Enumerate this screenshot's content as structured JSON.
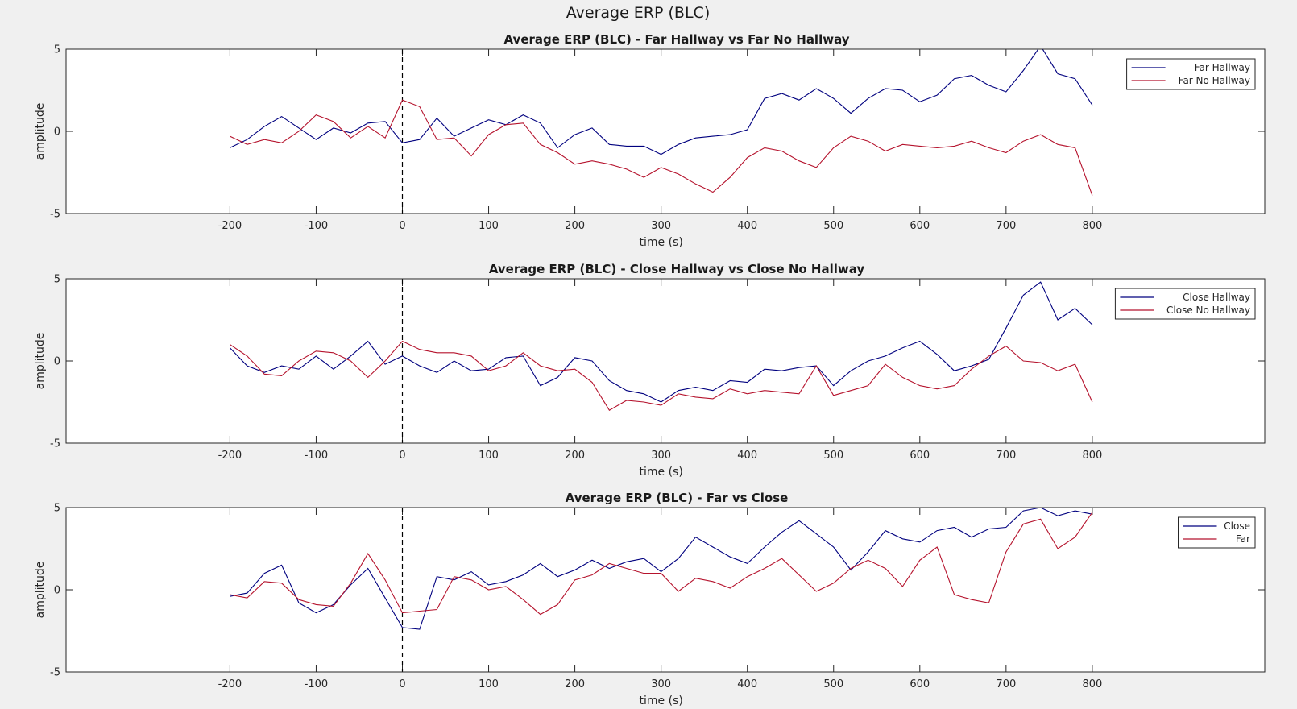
{
  "figure_title": "Average ERP (BLC)",
  "colors": {
    "series1": "#00007f",
    "series2": "#b5132d",
    "axes": "#262626",
    "plot_bg": "#ffffff",
    "figure_bg": "#f0f0f0"
  },
  "chart_data": [
    {
      "type": "line",
      "title": "Average ERP (BLC) - Far Hallway vs Far No Hallway",
      "xlabel": "time (s)",
      "ylabel": "amplitude",
      "xlim": [
        -390,
        1000
      ],
      "ylim": [
        -5,
        5
      ],
      "xticks": [
        "-200",
        "-100",
        "0",
        "100",
        "200",
        "300",
        "400",
        "500",
        "600",
        "700",
        "800"
      ],
      "yticks": [
        "-5",
        "0",
        "5"
      ],
      "vline_x": 0,
      "legend_position": "top-right",
      "grid": false,
      "series": [
        {
          "name": "Far Hallway",
          "color": "#00007f",
          "x": [
            -200,
            -180,
            -160,
            -140,
            -120,
            -100,
            -80,
            -60,
            -40,
            -20,
            0,
            20,
            40,
            60,
            80,
            100,
            120,
            140,
            160,
            180,
            200,
            220,
            240,
            260,
            280,
            300,
            320,
            340,
            360,
            380,
            400,
            420,
            440,
            460,
            480,
            500,
            520,
            540,
            560,
            580,
            600,
            620,
            640,
            660,
            680,
            700,
            720,
            740,
            760,
            780,
            800
          ],
          "y": [
            -1,
            -0.5,
            0.3,
            0.9,
            0.2,
            -0.5,
            0.2,
            -0.1,
            0.5,
            0.6,
            -0.7,
            -0.5,
            0.8,
            -0.3,
            0.2,
            0.7,
            0.4,
            1,
            0.5,
            -1,
            -0.2,
            0.2,
            -0.8,
            -0.9,
            -0.9,
            -1.4,
            -0.8,
            -0.4,
            -0.3,
            -0.2,
            0.1,
            2,
            2.3,
            1.9,
            2.6,
            2,
            1.1,
            2,
            2.6,
            2.5,
            1.8,
            2.2,
            3.2,
            3.4,
            2.8,
            2.4,
            3.7,
            5.2,
            3.5,
            3.2,
            1.6
          ]
        },
        {
          "name": "Far No Hallway",
          "color": "#b5132d",
          "x": [
            -200,
            -180,
            -160,
            -140,
            -120,
            -100,
            -80,
            -60,
            -40,
            -20,
            0,
            20,
            40,
            60,
            80,
            100,
            120,
            140,
            160,
            180,
            200,
            220,
            240,
            260,
            280,
            300,
            320,
            340,
            360,
            380,
            400,
            420,
            440,
            460,
            480,
            500,
            520,
            540,
            560,
            580,
            600,
            620,
            640,
            660,
            680,
            700,
            720,
            740,
            760,
            780,
            800
          ],
          "y": [
            -0.3,
            -0.8,
            -0.5,
            -0.7,
            0,
            1,
            0.6,
            -0.4,
            0.3,
            -0.4,
            1.9,
            1.5,
            -0.5,
            -0.4,
            -1.5,
            -0.2,
            0.4,
            0.5,
            -0.8,
            -1.3,
            -2,
            -1.8,
            -2,
            -2.3,
            -2.8,
            -2.2,
            -2.6,
            -3.2,
            -3.7,
            -2.8,
            -1.6,
            -1,
            -1.2,
            -1.8,
            -2.2,
            -1,
            -0.3,
            -0.6,
            -1.2,
            -0.8,
            -0.9,
            -1,
            -0.9,
            -0.6,
            -1,
            -1.3,
            -0.6,
            -0.2,
            -0.8,
            -1,
            -3.9
          ]
        }
      ]
    },
    {
      "type": "line",
      "title": "Average ERP (BLC) - Close Hallway vs Close No Hallway",
      "xlabel": "time (s)",
      "ylabel": "amplitude",
      "xlim": [
        -390,
        1000
      ],
      "ylim": [
        -5,
        5
      ],
      "xticks": [
        "-200",
        "-100",
        "0",
        "100",
        "200",
        "300",
        "400",
        "500",
        "600",
        "700",
        "800"
      ],
      "yticks": [
        "-5",
        "0",
        "5"
      ],
      "vline_x": 0,
      "legend_position": "top-right",
      "grid": false,
      "series": [
        {
          "name": "Close Hallway",
          "color": "#00007f",
          "x": [
            -200,
            -180,
            -160,
            -140,
            -120,
            -100,
            -80,
            -60,
            -40,
            -20,
            0,
            20,
            40,
            60,
            80,
            100,
            120,
            140,
            160,
            180,
            200,
            220,
            240,
            260,
            280,
            300,
            320,
            340,
            360,
            380,
            400,
            420,
            440,
            460,
            480,
            500,
            520,
            540,
            560,
            580,
            600,
            620,
            640,
            660,
            680,
            700,
            720,
            740,
            760,
            780,
            800
          ],
          "y": [
            0.8,
            -0.3,
            -0.7,
            -0.3,
            -0.5,
            0.3,
            -0.5,
            0.3,
            1.2,
            -0.2,
            0.3,
            -0.3,
            -0.7,
            0,
            -0.6,
            -0.5,
            0.2,
            0.3,
            -1.5,
            -1,
            0.2,
            0,
            -1.2,
            -1.8,
            -2,
            -2.5,
            -1.8,
            -1.6,
            -1.8,
            -1.2,
            -1.3,
            -0.5,
            -0.6,
            -0.4,
            -0.3,
            -1.5,
            -0.6,
            0,
            0.3,
            0.8,
            1.2,
            0.4,
            -0.6,
            -0.3,
            0.1,
            2,
            4,
            4.8,
            2.5,
            3.2,
            2.2
          ]
        },
        {
          "name": "Close No Hallway",
          "color": "#b5132d",
          "x": [
            -200,
            -180,
            -160,
            -140,
            -120,
            -100,
            -80,
            -60,
            -40,
            -20,
            0,
            20,
            40,
            60,
            80,
            100,
            120,
            140,
            160,
            180,
            200,
            220,
            240,
            260,
            280,
            300,
            320,
            340,
            360,
            380,
            400,
            420,
            440,
            460,
            480,
            500,
            520,
            540,
            560,
            580,
            600,
            620,
            640,
            660,
            680,
            700,
            720,
            740,
            760,
            780,
            800
          ],
          "y": [
            1,
            0.3,
            -0.8,
            -0.9,
            0,
            0.6,
            0.5,
            0,
            -1,
            0,
            1.2,
            0.7,
            0.5,
            0.5,
            0.3,
            -0.6,
            -0.3,
            0.5,
            -0.3,
            -0.6,
            -0.5,
            -1.3,
            -3,
            -2.4,
            -2.5,
            -2.7,
            -2,
            -2.2,
            -2.3,
            -1.7,
            -2,
            -1.8,
            -1.9,
            -2,
            -0.3,
            -2.1,
            -1.8,
            -1.5,
            -0.2,
            -1,
            -1.5,
            -1.7,
            -1.5,
            -0.5,
            0.3,
            0.9,
            0,
            -0.1,
            -0.6,
            -0.2,
            -2.5
          ]
        }
      ]
    },
    {
      "type": "line",
      "title": "Average ERP (BLC) - Far vs Close",
      "xlabel": "time (s)",
      "ylabel": "amplitude",
      "xlim": [
        -390,
        1000
      ],
      "ylim": [
        -5,
        5
      ],
      "xticks": [
        "-200",
        "-100",
        "0",
        "100",
        "200",
        "300",
        "400",
        "500",
        "600",
        "700",
        "800"
      ],
      "yticks": [
        "-5",
        "0",
        "5"
      ],
      "vline_x": 0,
      "legend_position": "top-right",
      "grid": false,
      "series": [
        {
          "name": "Close",
          "color": "#00007f",
          "x": [
            -200,
            -180,
            -160,
            -140,
            -120,
            -100,
            -80,
            -60,
            -40,
            -20,
            0,
            20,
            40,
            60,
            80,
            100,
            120,
            140,
            160,
            180,
            200,
            220,
            240,
            260,
            280,
            300,
            320,
            340,
            360,
            380,
            400,
            420,
            440,
            460,
            480,
            500,
            520,
            540,
            560,
            580,
            600,
            620,
            640,
            660,
            680,
            700,
            720,
            740,
            760,
            780,
            800
          ],
          "y": [
            -0.4,
            -0.2,
            1,
            1.5,
            -0.8,
            -1.4,
            -0.9,
            0.3,
            1.3,
            -0.5,
            -2.3,
            -2.4,
            0.8,
            0.6,
            1.1,
            0.3,
            0.5,
            0.9,
            1.6,
            0.8,
            1.2,
            1.8,
            1.3,
            1.7,
            1.9,
            1.1,
            1.9,
            3.2,
            2.6,
            2,
            1.6,
            2.6,
            3.5,
            4.2,
            3.4,
            2.6,
            1.2,
            2.3,
            3.6,
            3.1,
            2.9,
            3.6,
            3.8,
            3.2,
            3.7,
            3.8,
            4.8,
            5,
            4.5,
            4.8,
            4.6
          ]
        },
        {
          "name": "Far",
          "color": "#b5132d",
          "x": [
            -200,
            -180,
            -160,
            -140,
            -120,
            -100,
            -80,
            -60,
            -40,
            -20,
            0,
            20,
            40,
            60,
            80,
            100,
            120,
            140,
            160,
            180,
            200,
            220,
            240,
            260,
            280,
            300,
            320,
            340,
            360,
            380,
            400,
            420,
            440,
            460,
            480,
            500,
            520,
            540,
            560,
            580,
            600,
            620,
            640,
            660,
            680,
            700,
            720,
            740,
            760,
            780,
            800
          ],
          "y": [
            -0.3,
            -0.5,
            0.5,
            0.4,
            -0.6,
            -0.9,
            -1,
            0.4,
            2.2,
            0.6,
            -1.4,
            -1.3,
            -1.2,
            0.8,
            0.6,
            0,
            0.2,
            -0.6,
            -1.5,
            -0.9,
            0.6,
            0.9,
            1.6,
            1.3,
            1,
            1,
            -0.1,
            0.7,
            0.5,
            0.1,
            0.8,
            1.3,
            1.9,
            0.9,
            -0.1,
            0.4,
            1.3,
            1.8,
            1.3,
            0.2,
            1.8,
            2.6,
            -0.3,
            -0.6,
            -0.8,
            2.3,
            4,
            4.3,
            2.5,
            3.2,
            4.7
          ]
        }
      ]
    }
  ]
}
